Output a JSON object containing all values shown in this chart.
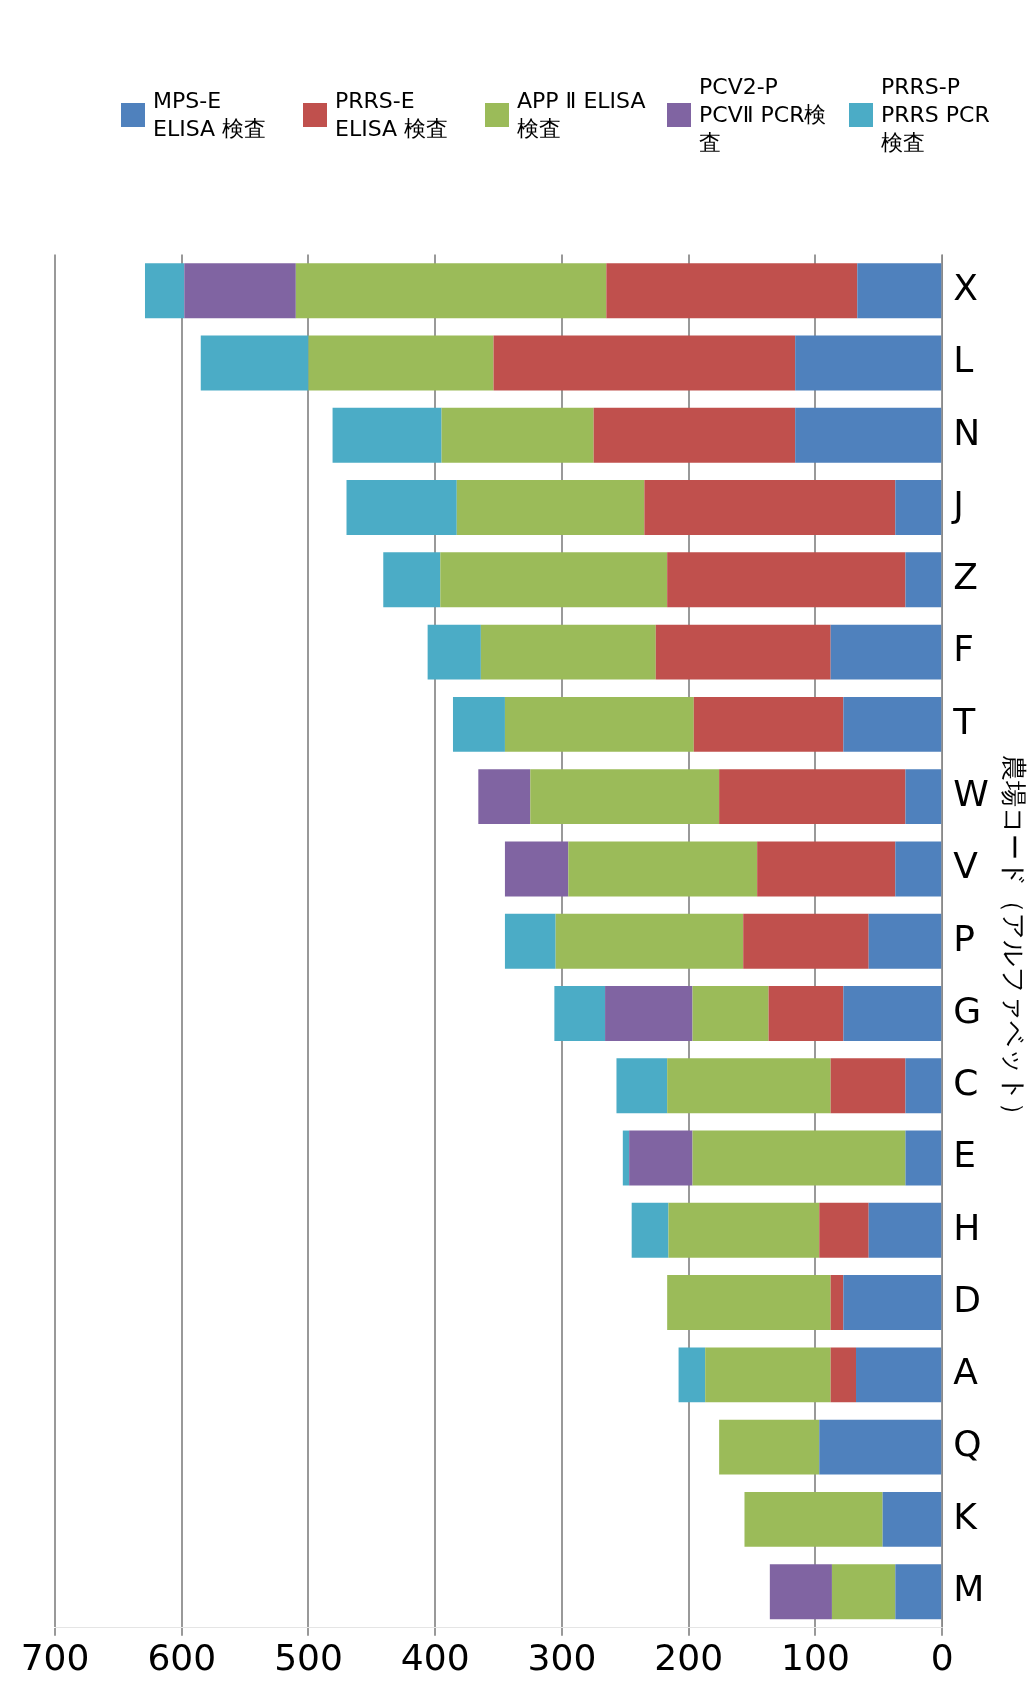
{
  "chart_data": {
    "type": "bar",
    "stacked": true,
    "orientation": "horizontal",
    "ylabel": "農場コード（アルファベット）",
    "categories": [
      "X",
      "L",
      "N",
      "J",
      "Z",
      "F",
      "T",
      "W",
      "V",
      "P",
      "G",
      "C",
      "E",
      "H",
      "D",
      "A",
      "Q",
      "K",
      "M"
    ],
    "series": [
      {
        "name": "MPS-E ELISA 検査",
        "color": "#4f81bd",
        "values": [
          67,
          116,
          116,
          37,
          29,
          88,
          78,
          29,
          37,
          58,
          78,
          29,
          29,
          58,
          78,
          68,
          97,
          47,
          37
        ]
      },
      {
        "name": "PRRS-E ELISA 検査",
        "color": "#c0504d",
        "values": [
          198,
          238,
          159,
          198,
          188,
          138,
          118,
          147,
          109,
          99,
          59,
          59,
          0,
          39,
          10,
          20,
          0,
          0,
          0
        ]
      },
      {
        "name": "APP Ⅱ ELISA 検査",
        "color": "#9bbb59",
        "values": [
          245,
          146,
          120,
          148,
          179,
          138,
          149,
          149,
          149,
          148,
          60,
          129,
          168,
          119,
          129,
          99,
          79,
          109,
          50
        ]
      },
      {
        "name": "PCV2-P PCVⅡ PCR検査",
        "color": "#8064a2",
        "values": [
          88,
          0,
          0,
          0,
          0,
          0,
          0,
          41,
          50,
          0,
          69,
          0,
          50,
          0,
          0,
          0,
          0,
          0,
          49
        ]
      },
      {
        "name": "PRRS-P PRRS PCR検査",
        "color": "#4bacc6",
        "values": [
          31,
          85,
          86,
          87,
          45,
          42,
          41,
          0,
          0,
          40,
          40,
          40,
          5,
          29,
          0,
          21,
          0,
          0,
          0
        ]
      }
    ],
    "xlim": [
      700,
      0
    ],
    "xticks": [
      0,
      100,
      200,
      300,
      400,
      500,
      600,
      700
    ],
    "grid": "x",
    "legend": "top right"
  }
}
